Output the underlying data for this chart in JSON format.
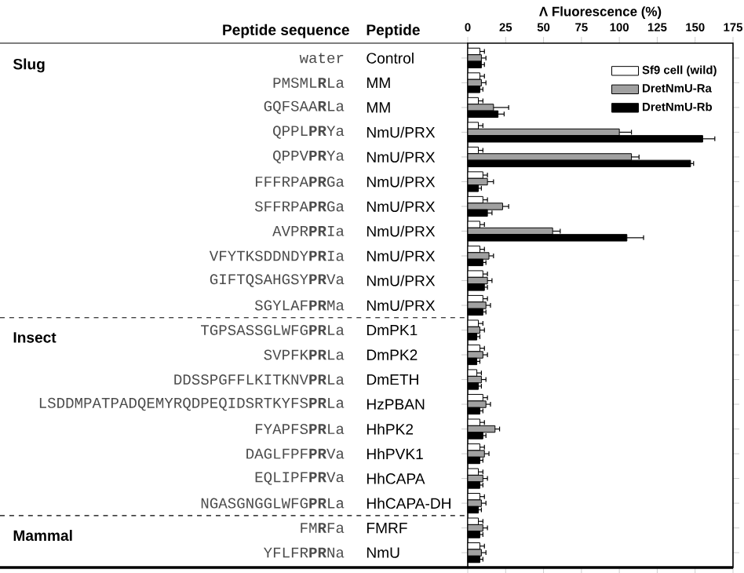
{
  "chart_data": {
    "type": "bar",
    "orientation": "horizontal",
    "x2label": "Λ Fluorescence (%)",
    "categories": [
      "water",
      "PMSML**R**La",
      "GQFSAA**R**La",
      "QPPL**PR**Ya",
      "QPPV**PR**Ya",
      "FFFRPA**PR**Ga",
      "SFFRPA**PR**Ga",
      "AVPR**PR**Ia",
      "VFYTKSDDNDY**PR**Ia",
      "GIFTQSAHGSY**PR**Va",
      "SGYLAF**PR**Ma",
      "TGPSASSGLWFG**PR**La",
      "SVPFK**PR**La",
      "DDSSPGFFLKITKNV**PR**La",
      "LSDDMPATPADQEMYRQDPEQIDSRTKYFS**PR**La",
      "FYAPFS**PR**La",
      "DAGLFPF**PR**Va",
      "EQLIPF**PR**Va",
      "NGASGNGGLWFG**PR**La",
      "FM**R**Fa",
      "YFLFR**PR**Na"
    ],
    "y2_categories": [
      "Control",
      "MM",
      "MM",
      "NmU/PRX",
      "NmU/PRX",
      "NmU/PRX",
      "NmU/PRX",
      "NmU/PRX",
      "NmU/PRX",
      "NmU/PRX",
      "NmU/PRX",
      "DmPK1",
      "DmPK2",
      "DmETH",
      "HzPBAN",
      "HhPK2",
      "HhPVK1",
      "HhCAPA",
      "HhCAPA-DH",
      "FMRF",
      "NmU"
    ],
    "series": [
      {
        "name": "Sf9 cell (wild)",
        "axis": "x2",
        "color": "#ffffff",
        "values": [
          8,
          8,
          7,
          7,
          7,
          10,
          10,
          8,
          8,
          10,
          10,
          7,
          8,
          6,
          10,
          8,
          8,
          7,
          8,
          7,
          8
        ],
        "errors": [
          [
            8,
            11
          ],
          [
            8,
            11
          ],
          [
            7,
            10
          ],
          [
            7,
            10
          ],
          [
            7,
            10
          ],
          [
            10,
            13
          ],
          [
            10,
            13
          ],
          [
            8,
            11
          ],
          [
            8,
            11
          ],
          [
            10,
            13
          ],
          [
            10,
            13
          ],
          [
            7,
            10
          ],
          [
            8,
            11
          ],
          [
            6,
            9
          ],
          [
            10,
            13
          ],
          [
            8,
            11
          ],
          [
            8,
            11
          ],
          [
            7,
            10
          ],
          [
            8,
            11
          ],
          [
            7,
            10
          ],
          [
            8,
            11
          ]
        ]
      },
      {
        "name": "DretNmU-Ra",
        "axis": "x2",
        "color": "#a0a0a0",
        "values": [
          9,
          9,
          17,
          100,
          108,
          13,
          23,
          56,
          14,
          13,
          12,
          8,
          10,
          9,
          12,
          18,
          11,
          10,
          9,
          10,
          9
        ],
        "errors": [
          [
            9,
            12
          ],
          [
            9,
            12
          ],
          [
            17,
            27
          ],
          [
            100,
            108
          ],
          [
            108,
            113
          ],
          [
            13,
            17
          ],
          [
            23,
            27
          ],
          [
            56,
            61
          ],
          [
            14,
            17
          ],
          [
            13,
            16
          ],
          [
            12,
            15
          ],
          [
            8,
            11
          ],
          [
            10,
            13
          ],
          [
            9,
            12
          ],
          [
            12,
            15
          ],
          [
            18,
            21
          ],
          [
            11,
            14
          ],
          [
            10,
            13
          ],
          [
            9,
            12
          ],
          [
            10,
            13
          ],
          [
            9,
            12
          ]
        ]
      },
      {
        "name": "DretNmU-Rb",
        "axis": "x2",
        "color": "#000000",
        "values": [
          9,
          8,
          20,
          155,
          147,
          7,
          13,
          105,
          10,
          11,
          10,
          6,
          6,
          7,
          8,
          10,
          8,
          8,
          7,
          8,
          8
        ],
        "errors": [
          [
            9,
            11
          ],
          [
            8,
            10
          ],
          [
            20,
            24
          ],
          [
            155,
            163
          ],
          [
            147,
            149
          ],
          [
            7,
            9
          ],
          [
            13,
            16
          ],
          [
            105,
            116
          ],
          [
            10,
            12
          ],
          [
            11,
            13
          ],
          [
            10,
            12
          ],
          [
            6,
            8
          ],
          [
            6,
            8
          ],
          [
            7,
            9
          ],
          [
            8,
            10
          ],
          [
            10,
            12
          ],
          [
            8,
            10
          ],
          [
            8,
            10
          ],
          [
            7,
            9
          ],
          [
            8,
            10
          ],
          [
            8,
            10
          ]
        ]
      }
    ],
    "x2lim": [
      0,
      175
    ],
    "x2ticks": [
      0,
      25,
      50,
      75,
      100,
      125,
      150,
      175
    ],
    "legend": "top right",
    "annotations": [
      "Peptide sequence",
      "Peptide",
      "Slug",
      "Insect",
      "Mammal"
    ]
  }
}
